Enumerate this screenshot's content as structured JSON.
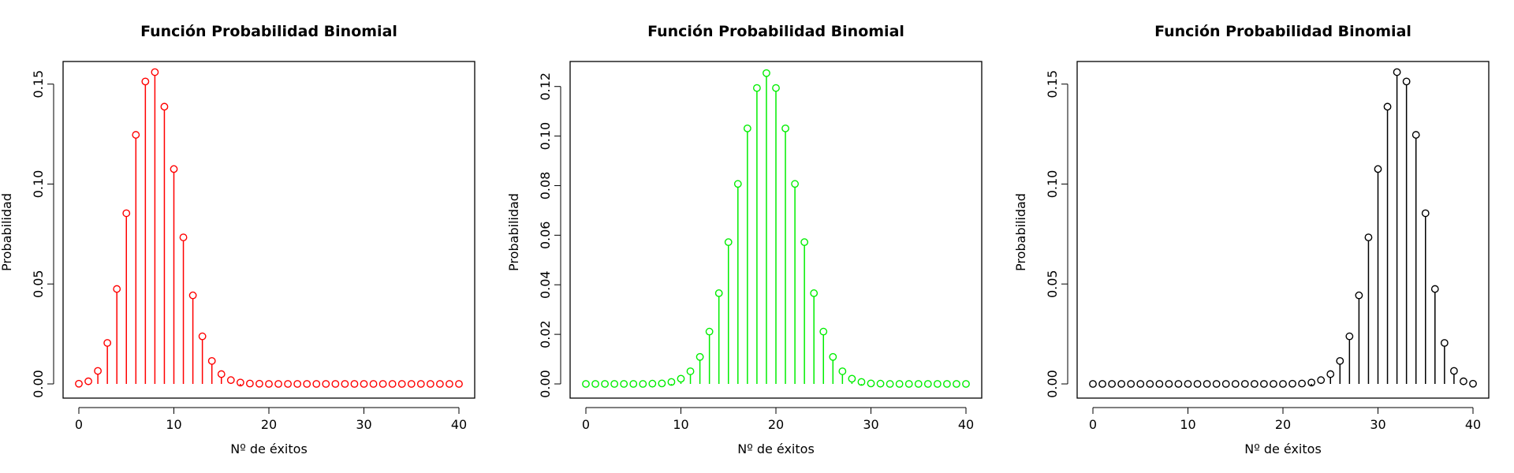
{
  "chart_data": [
    {
      "type": "scatter",
      "style": "stem",
      "title": "Función Probabilidad Binomial",
      "xlabel": "Nº de éxitos",
      "ylabel": "Probabilidad",
      "color": "#ff0000",
      "xlim": [
        0,
        40
      ],
      "ylim": [
        0,
        0.155
      ],
      "xticks": [
        0,
        10,
        20,
        30,
        40
      ],
      "yticks": [
        0.0,
        0.05,
        0.1,
        0.15
      ],
      "ytick_labels": [
        "0.00",
        "0.05",
        "0.10",
        "0.15"
      ],
      "x": [
        0,
        1,
        2,
        3,
        4,
        5,
        6,
        7,
        8,
        9,
        10,
        11,
        12,
        13,
        14,
        15,
        16,
        17,
        18,
        19,
        20,
        21,
        22,
        23,
        24,
        25,
        26,
        27,
        28,
        29,
        30,
        31,
        32,
        33,
        34,
        35,
        36,
        37,
        38,
        39,
        40
      ],
      "y": [
        0.0001,
        0.0013,
        0.0065,
        0.0205,
        0.0475,
        0.0854,
        0.1246,
        0.1513,
        0.156,
        0.1387,
        0.1075,
        0.0733,
        0.0443,
        0.0238,
        0.0115,
        0.0049,
        0.0019,
        0.0007,
        0.0002,
        0.0001,
        0,
        0,
        0,
        0,
        0,
        0,
        0,
        0,
        0,
        0,
        0,
        0,
        0,
        0,
        0,
        0,
        0,
        0,
        0,
        0,
        0
      ]
    },
    {
      "type": "scatter",
      "style": "stem",
      "title": "Función Probabilidad Binomial",
      "xlabel": "Nº de éxitos",
      "ylabel": "Probabilidad",
      "color": "#00ee00",
      "xlim": [
        0,
        40
      ],
      "ylim": [
        0,
        0.125
      ],
      "xticks": [
        0,
        10,
        20,
        30,
        40
      ],
      "yticks": [
        0.0,
        0.02,
        0.04,
        0.06,
        0.08,
        0.1,
        0.12
      ],
      "ytick_labels": [
        "0.00",
        "0.02",
        "0.04",
        "0.06",
        "0.08",
        "0.10",
        "0.12"
      ],
      "x": [
        0,
        1,
        2,
        3,
        4,
        5,
        6,
        7,
        8,
        9,
        10,
        11,
        12,
        13,
        14,
        15,
        16,
        17,
        18,
        19,
        20,
        21,
        22,
        23,
        24,
        25,
        26,
        27,
        28,
        29,
        30,
        31,
        32,
        33,
        34,
        35,
        36,
        37,
        38,
        39,
        40
      ],
      "y": [
        0,
        0,
        0,
        0,
        0,
        0,
        0,
        0.0001,
        0.0002,
        0.0008,
        0.0021,
        0.0051,
        0.0109,
        0.0211,
        0.0366,
        0.0572,
        0.0807,
        0.1031,
        0.1194,
        0.1254,
        0.1194,
        0.1031,
        0.0807,
        0.0572,
        0.0366,
        0.0211,
        0.0109,
        0.0051,
        0.0021,
        0.0008,
        0.0002,
        0.0001,
        0,
        0,
        0,
        0,
        0,
        0,
        0,
        0,
        0
      ]
    },
    {
      "type": "scatter",
      "style": "stem",
      "title": "Función Probabilidad Binomial",
      "xlabel": "Nº de éxitos",
      "ylabel": "Probabilidad",
      "color": "#000000",
      "xlim": [
        0,
        40
      ],
      "ylim": [
        0,
        0.155
      ],
      "xticks": [
        0,
        10,
        20,
        30,
        40
      ],
      "yticks": [
        0.0,
        0.05,
        0.1,
        0.15
      ],
      "ytick_labels": [
        "0.00",
        "0.05",
        "0.10",
        "0.15"
      ],
      "x": [
        0,
        1,
        2,
        3,
        4,
        5,
        6,
        7,
        8,
        9,
        10,
        11,
        12,
        13,
        14,
        15,
        16,
        17,
        18,
        19,
        20,
        21,
        22,
        23,
        24,
        25,
        26,
        27,
        28,
        29,
        30,
        31,
        32,
        33,
        34,
        35,
        36,
        37,
        38,
        39,
        40
      ],
      "y": [
        0,
        0,
        0,
        0,
        0,
        0,
        0,
        0,
        0,
        0,
        0,
        0,
        0,
        0,
        0,
        0,
        0,
        0,
        0,
        0,
        0,
        0.0001,
        0.0002,
        0.0007,
        0.0019,
        0.0049,
        0.0115,
        0.0238,
        0.0443,
        0.0733,
        0.1075,
        0.1387,
        0.156,
        0.1513,
        0.1246,
        0.0854,
        0.0475,
        0.0205,
        0.0065,
        0.0013,
        0.0001
      ]
    }
  ]
}
